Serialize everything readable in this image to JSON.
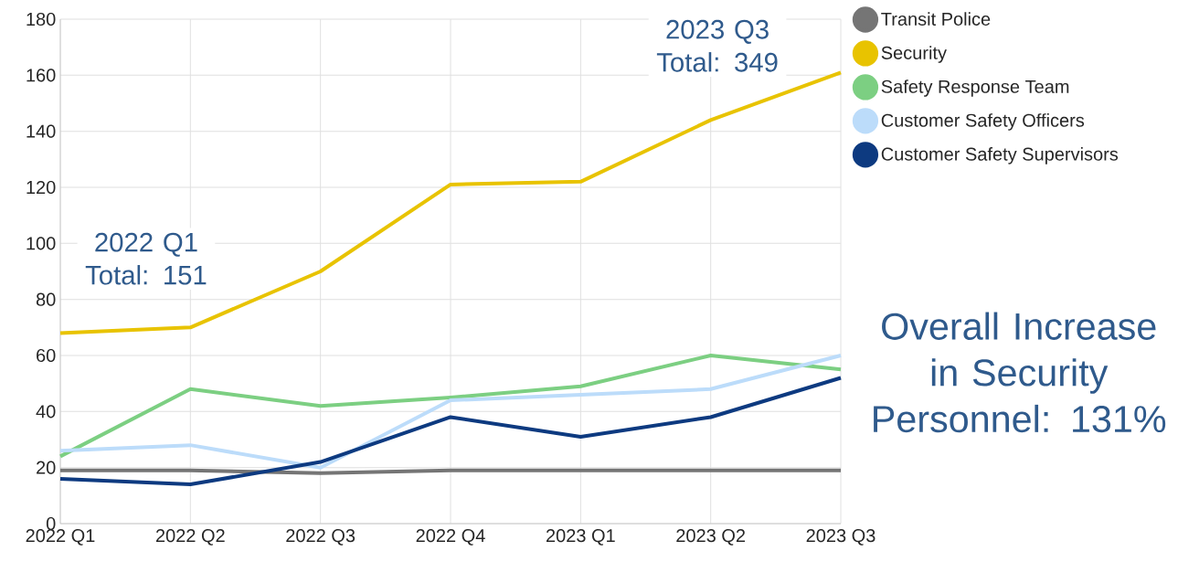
{
  "chart_data": {
    "type": "line",
    "categories": [
      "2022 Q1",
      "2022 Q2",
      "2022 Q3",
      "2022 Q4",
      "2023 Q1",
      "2023 Q2",
      "2023 Q3"
    ],
    "series": [
      {
        "name": "Transit Police",
        "color": "#757575",
        "values": [
          19,
          19,
          18,
          19,
          19,
          19,
          19
        ]
      },
      {
        "name": "Security",
        "color": "#e8c300",
        "values": [
          68,
          70,
          90,
          121,
          122,
          144,
          161
        ]
      },
      {
        "name": "Safety Response Team",
        "color": "#7ccf82",
        "values": [
          24,
          48,
          42,
          45,
          49,
          60,
          55
        ]
      },
      {
        "name": "Customer Safety Officers",
        "color": "#bcdcfa",
        "values": [
          26,
          28,
          20,
          44,
          46,
          48,
          60
        ]
      },
      {
        "name": "Customer Safety Supervisors",
        "color": "#0d3a80",
        "values": [
          16,
          14,
          22,
          38,
          31,
          38,
          52
        ]
      }
    ],
    "ylim": [
      0,
      180
    ],
    "yticks": [
      0,
      20,
      40,
      60,
      80,
      100,
      120,
      140,
      160,
      180
    ],
    "grid": true,
    "legend": "top right",
    "marker": "none",
    "line_style": "solid",
    "annotations": [
      "2022 Q1 Total: 151",
      "2023 Q3 Total: 349",
      "Overall Increase in Security Personnel: 131%"
    ]
  }
}
